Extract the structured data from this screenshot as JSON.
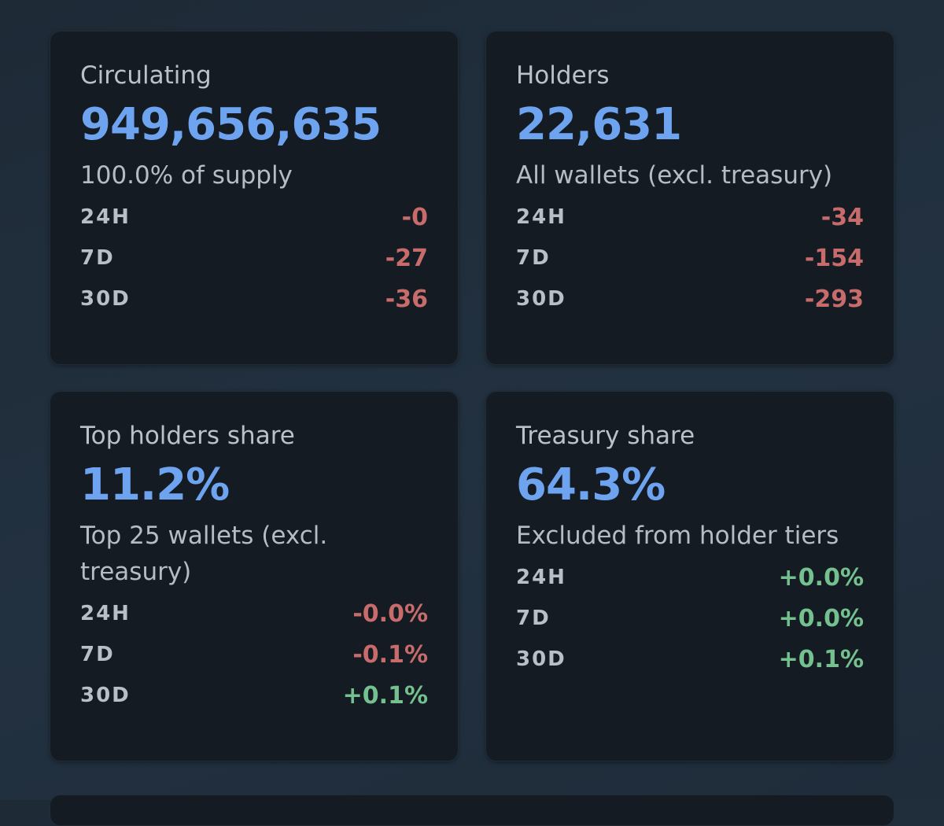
{
  "colors": {
    "accent": "#6ea4ef",
    "negative": "#c86b6b",
    "positive": "#74c08f"
  },
  "cards": [
    {
      "title": "Circulating",
      "value": "949,656,635",
      "subtitle": "100.0% of supply",
      "changes": [
        {
          "period": "24H",
          "value": "-0",
          "trend": "negative"
        },
        {
          "period": "7D",
          "value": "-27",
          "trend": "negative"
        },
        {
          "period": "30D",
          "value": "-36",
          "trend": "negative"
        }
      ]
    },
    {
      "title": "Holders",
      "value": "22,631",
      "subtitle": "All wallets (excl. treasury)",
      "changes": [
        {
          "period": "24H",
          "value": "-34",
          "trend": "negative"
        },
        {
          "period": "7D",
          "value": "-154",
          "trend": "negative"
        },
        {
          "period": "30D",
          "value": "-293",
          "trend": "negative"
        }
      ]
    },
    {
      "title": "Top holders share",
      "value": "11.2%",
      "subtitle": "Top 25 wallets (excl. treasury)",
      "changes": [
        {
          "period": "24H",
          "value": "-0.0%",
          "trend": "negative"
        },
        {
          "period": "7D",
          "value": "-0.1%",
          "trend": "negative"
        },
        {
          "period": "30D",
          "value": "+0.1%",
          "trend": "positive"
        }
      ]
    },
    {
      "title": "Treasury share",
      "value": "64.3%",
      "subtitle": "Excluded from holder tiers",
      "changes": [
        {
          "period": "24H",
          "value": "+0.0%",
          "trend": "positive"
        },
        {
          "period": "7D",
          "value": "+0.0%",
          "trend": "positive"
        },
        {
          "period": "30D",
          "value": "+0.1%",
          "trend": "positive"
        }
      ]
    }
  ]
}
